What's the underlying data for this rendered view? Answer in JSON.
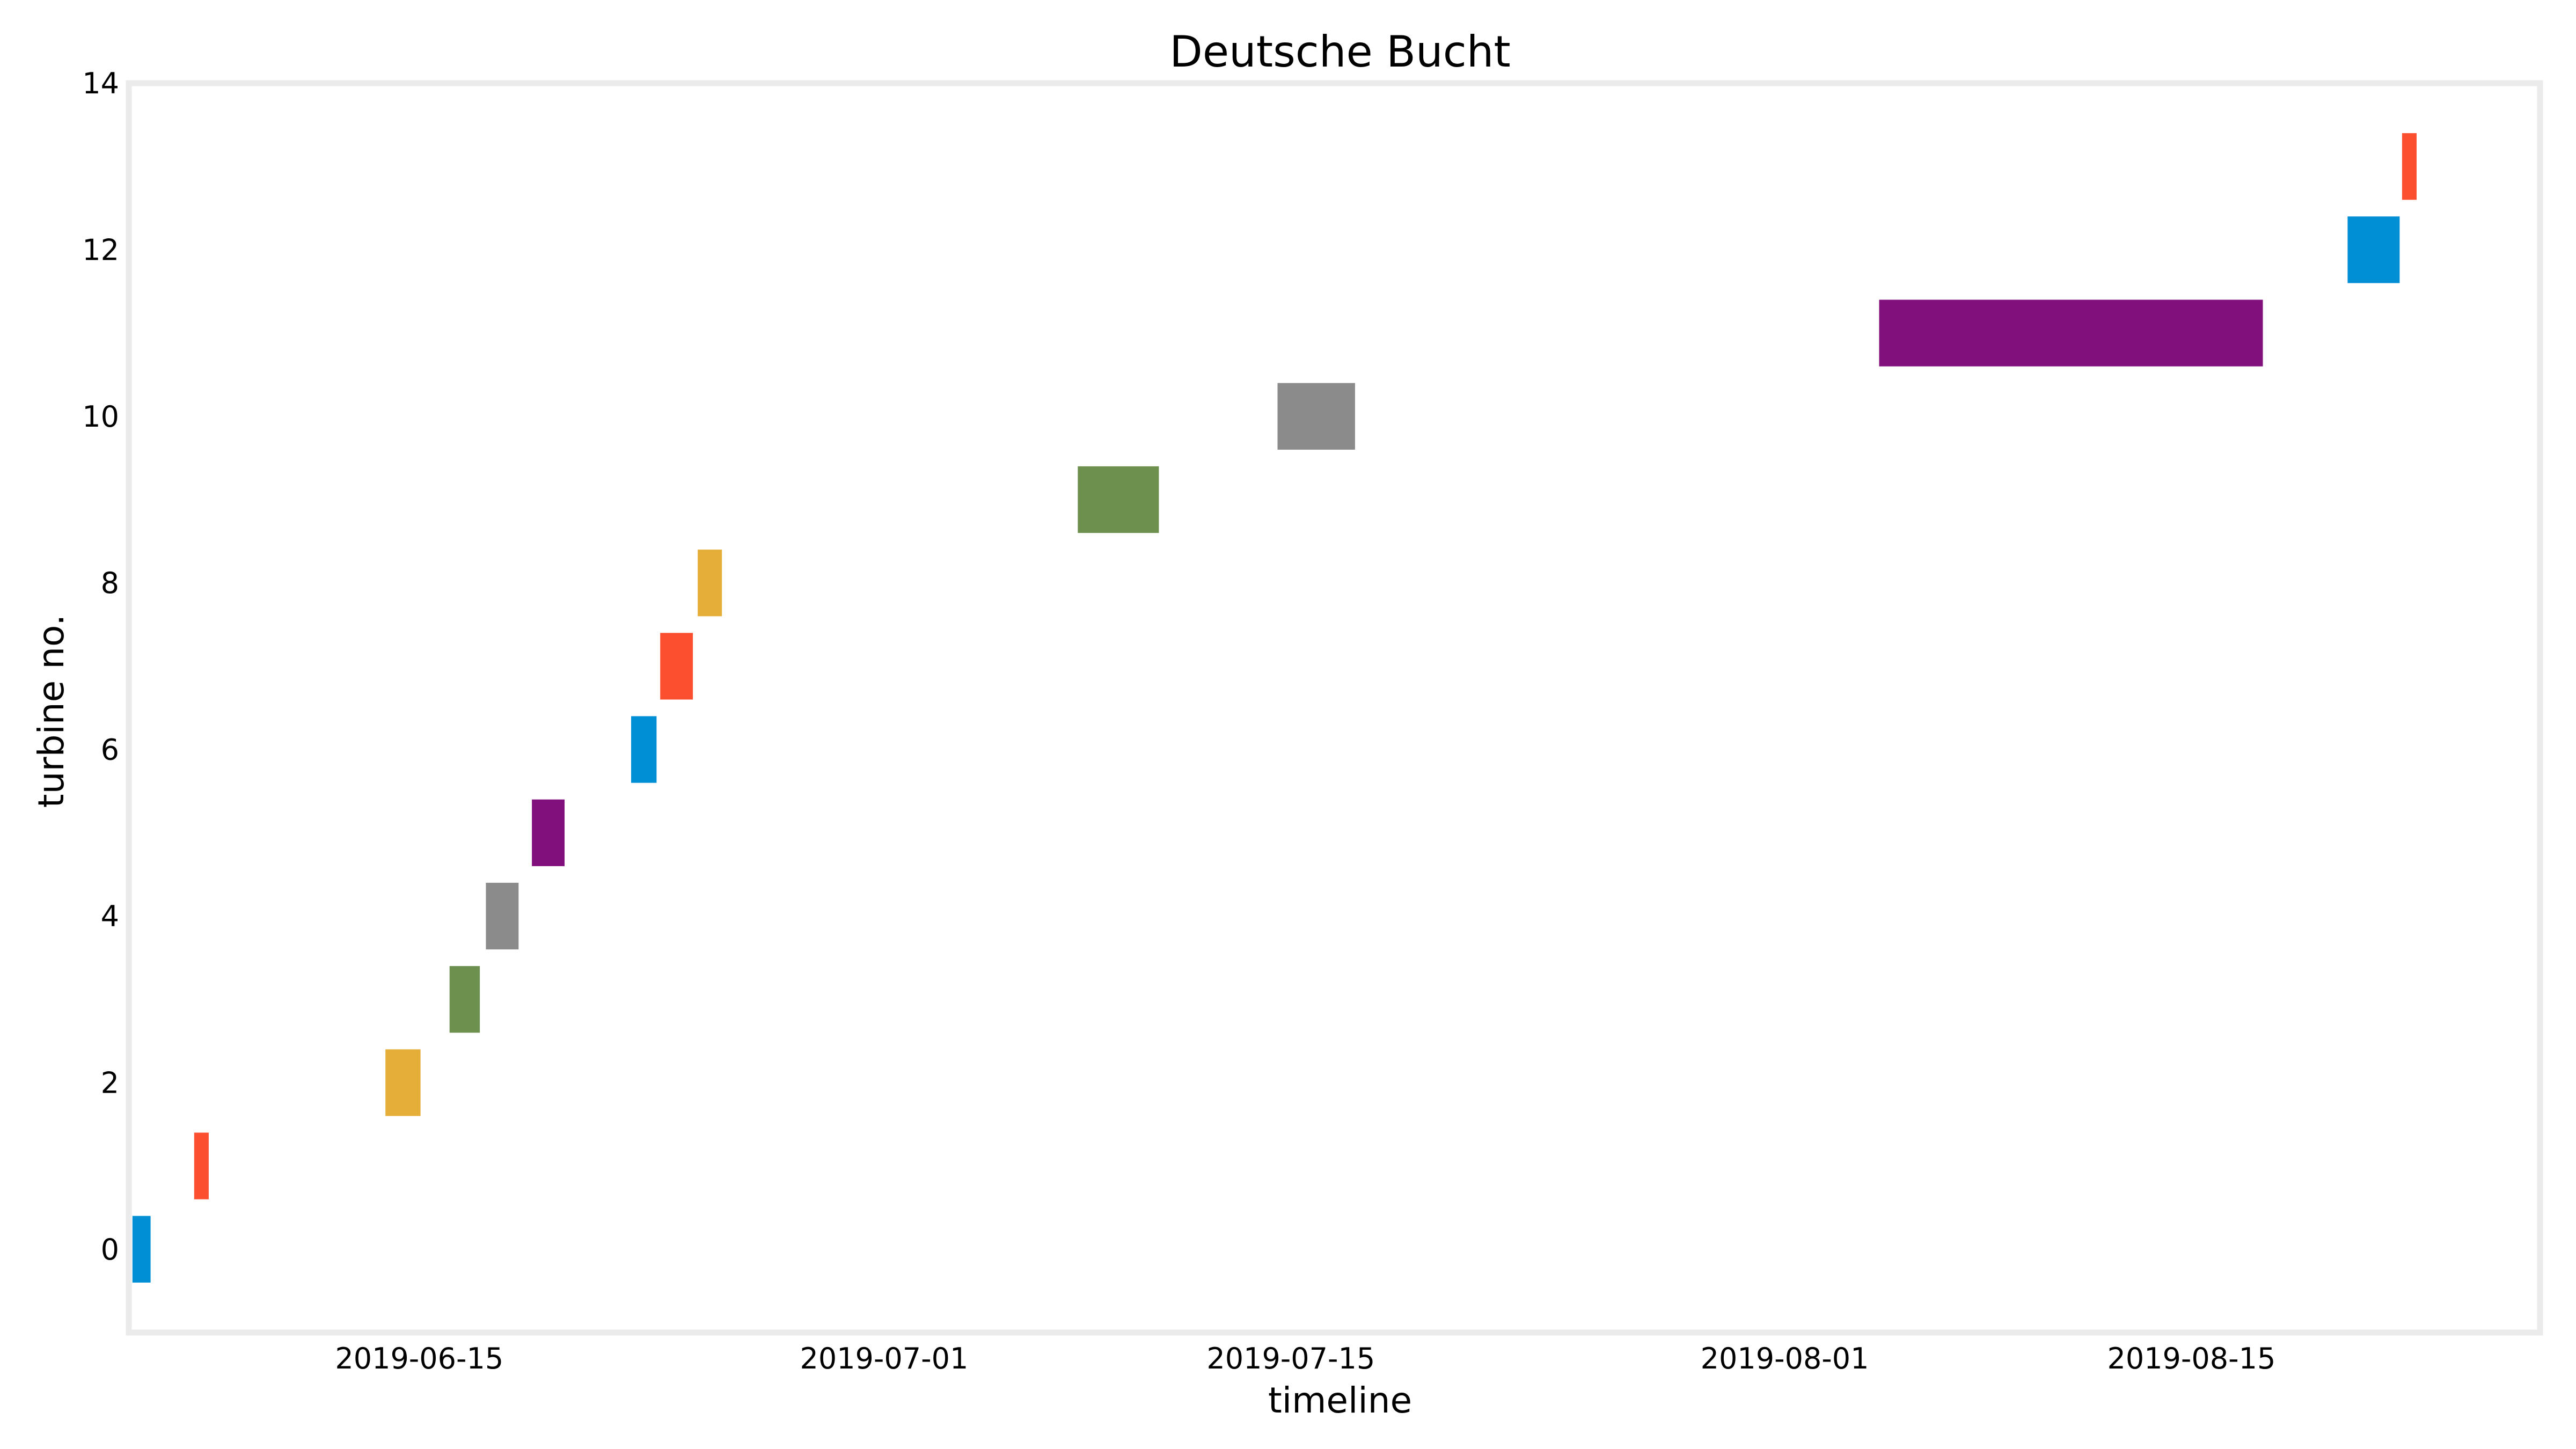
{
  "chart_data": {
    "type": "bar",
    "orientation": "horizontal-timeline",
    "title": "Deutsche Bucht",
    "xlabel": "timeline",
    "ylabel": "turbine no.",
    "xlim": [
      "2019-06-05",
      "2019-08-27"
    ],
    "ylim": [
      -1,
      14
    ],
    "x_ticks": [
      "2019-06-15",
      "2019-07-01",
      "2019-07-15",
      "2019-08-01",
      "2019-08-15"
    ],
    "y_ticks": [
      "0",
      "2",
      "4",
      "6",
      "8",
      "10",
      "12",
      "14"
    ],
    "grid": false,
    "legend": "none",
    "bar_height": 0.8,
    "bars": [
      {
        "turbine": 0,
        "start": "2019-06-05T03:00",
        "end": "2019-06-05T18:00",
        "color": "#008fd5"
      },
      {
        "turbine": 1,
        "start": "2019-06-07T06:00",
        "end": "2019-06-07T18:00",
        "color": "#fc4f30"
      },
      {
        "turbine": 2,
        "start": "2019-06-13T20:00",
        "end": "2019-06-15T01:00",
        "color": "#e5ae38"
      },
      {
        "turbine": 3,
        "start": "2019-06-16T01:00",
        "end": "2019-06-17T02:00",
        "color": "#6d904f"
      },
      {
        "turbine": 4,
        "start": "2019-06-17T07:00",
        "end": "2019-06-18T10:00",
        "color": "#8b8b8b"
      },
      {
        "turbine": 5,
        "start": "2019-06-18T21:00",
        "end": "2019-06-20T00:00",
        "color": "#810f7c"
      },
      {
        "turbine": 6,
        "start": "2019-06-22T07:00",
        "end": "2019-06-23T04:00",
        "color": "#008fd5"
      },
      {
        "turbine": 7,
        "start": "2019-06-23T07:00",
        "end": "2019-06-24T10:00",
        "color": "#fc4f30"
      },
      {
        "turbine": 8,
        "start": "2019-06-24T14:00",
        "end": "2019-06-25T10:00",
        "color": "#e5ae38"
      },
      {
        "turbine": 9,
        "start": "2019-07-07T16:00",
        "end": "2019-07-10T11:00",
        "color": "#6d904f"
      },
      {
        "turbine": 10,
        "start": "2019-07-14T13:00",
        "end": "2019-07-17T05:00",
        "color": "#8b8b8b"
      },
      {
        "turbine": 11,
        "start": "2019-08-04T06:00",
        "end": "2019-08-17T11:00",
        "color": "#810f7c"
      },
      {
        "turbine": 12,
        "start": "2019-08-20T09:00",
        "end": "2019-08-22T04:00",
        "color": "#008fd5"
      },
      {
        "turbine": 13,
        "start": "2019-08-22T06:00",
        "end": "2019-08-22T18:00",
        "color": "#fc4f30"
      }
    ]
  }
}
